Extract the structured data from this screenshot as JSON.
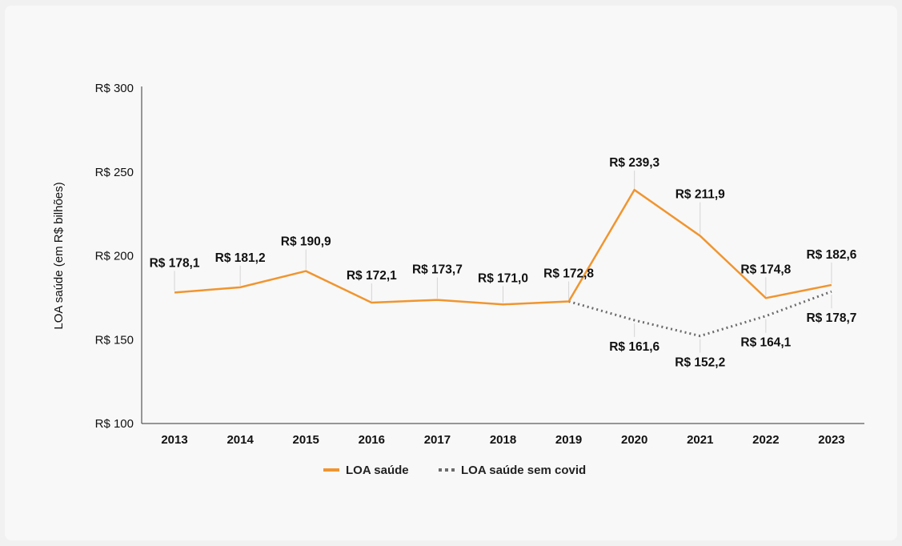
{
  "chart_data": {
    "type": "line",
    "title": "",
    "xlabel": "",
    "ylabel": "LOA saúde (em R$ bilhões)",
    "ylim": [
      100,
      300
    ],
    "y_ticks": [
      100,
      150,
      200,
      250,
      300
    ],
    "y_tick_labels": [
      "R$ 100",
      "R$ 150",
      "R$ 200",
      "R$ 250",
      "R$ 300"
    ],
    "categories": [
      "2013",
      "2014",
      "2015",
      "2016",
      "2017",
      "2018",
      "2019",
      "2020",
      "2021",
      "2022",
      "2023"
    ],
    "grid": false,
    "legend_position": "bottom",
    "series": [
      {
        "name": "LOA saúde",
        "color": "#f0952f",
        "style": "solid",
        "values": [
          178.1,
          181.2,
          190.9,
          172.1,
          173.7,
          171.0,
          172.8,
          239.3,
          211.9,
          174.8,
          182.6
        ],
        "labels": [
          "R$ 178,1",
          "R$ 181,2",
          "R$ 190,9",
          "R$ 172,1",
          "R$ 173,7",
          "R$ 171,0",
          "R$ 172,8",
          "R$ 239,3",
          "R$ 211,9",
          "R$ 174,8",
          "R$ 182,6"
        ]
      },
      {
        "name": "LOA saúde sem covid",
        "color": "#6b6b6b",
        "style": "dotted",
        "values": [
          null,
          null,
          null,
          null,
          null,
          null,
          172.8,
          161.6,
          152.2,
          164.1,
          178.7
        ],
        "labels": [
          null,
          null,
          null,
          null,
          null,
          null,
          null,
          "R$ 161,6",
          "R$ 152,2",
          "R$ 164,1",
          "R$ 178,7"
        ]
      }
    ]
  }
}
